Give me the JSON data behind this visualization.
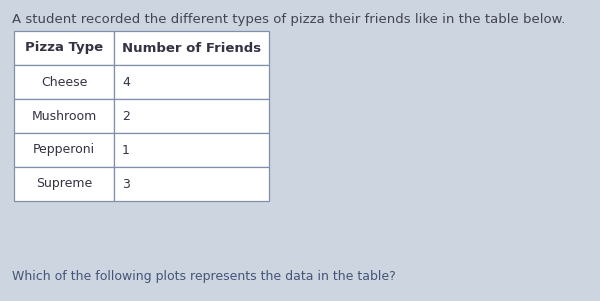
{
  "title": "A student recorded the different types of pizza their friends like in the table below.",
  "subtitle": "Which of the following plots represents the data in the table?",
  "col1_header": "Pizza Type",
  "col2_header": "Number of Friends",
  "rows": [
    [
      "Cheese",
      "4"
    ],
    [
      "Mushroom",
      "2"
    ],
    [
      "Pepperoni",
      "1"
    ],
    [
      "Supreme",
      "3"
    ]
  ],
  "background_color": "#cdd5e0",
  "table_bg": "#ffffff",
  "table_border_color": "#8090aa",
  "text_color": "#333344",
  "title_color": "#444455",
  "subtitle_color": "#445577",
  "title_fontsize": 9.5,
  "subtitle_fontsize": 9,
  "table_fontsize": 9,
  "header_fontsize": 9.5
}
